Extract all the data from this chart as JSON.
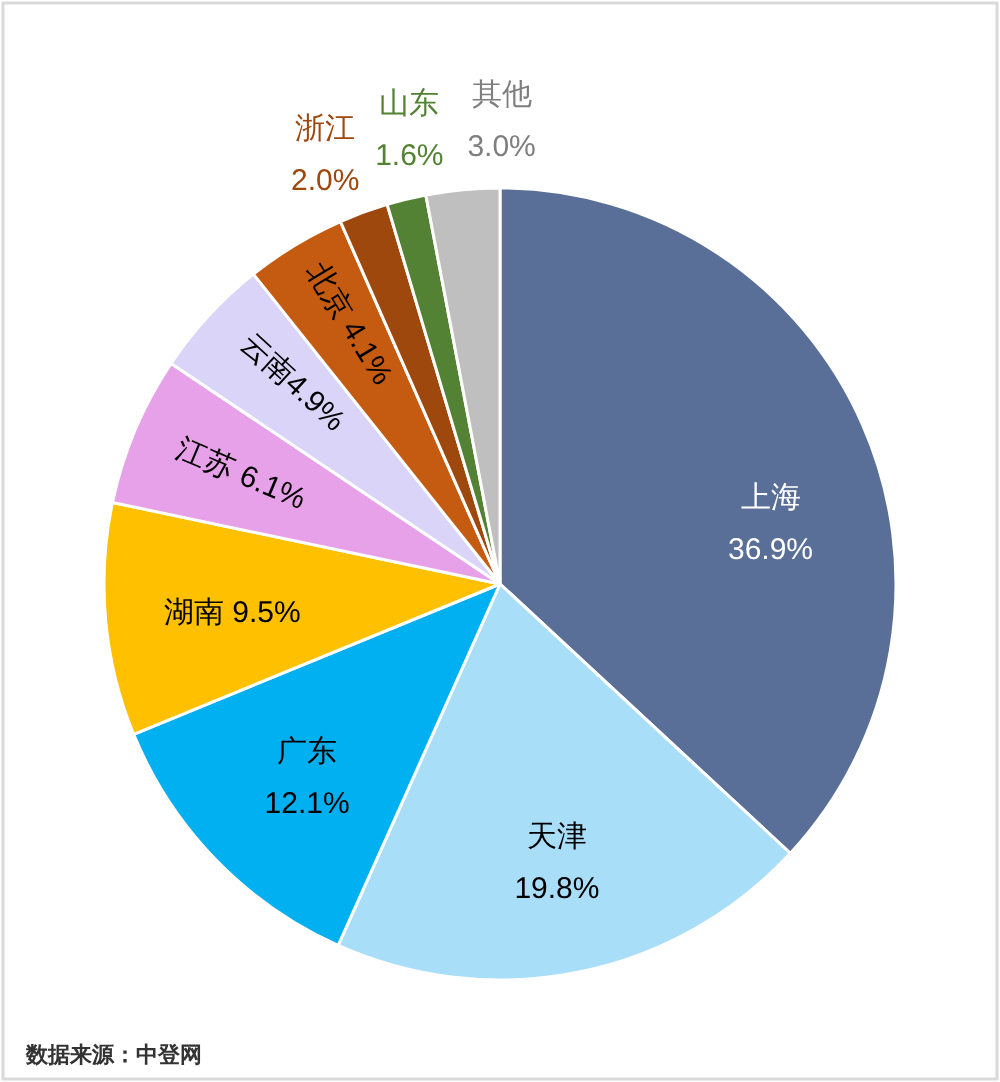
{
  "chart_data": {
    "type": "pie",
    "categories": [
      "上海",
      "天津",
      "广东",
      "湖南",
      "江苏",
      "云南",
      "北京",
      "浙江",
      "山东",
      "其他"
    ],
    "values": [
      36.9,
      19.8,
      12.1,
      9.5,
      6.1,
      4.9,
      4.1,
      2.0,
      1.6,
      3.0
    ],
    "colors": [
      "#5a6f97",
      "#a9def9",
      "#00b0f0",
      "#ffc000",
      "#e7a1e8",
      "#dad4f8",
      "#c55a11",
      "#9e480e",
      "#548235",
      "#bfbfbf"
    ],
    "value_labels": [
      "36.9%",
      "19.8%",
      "12.1%",
      "9.5%",
      "6.1%",
      "4.9%",
      "4.1%",
      "2.0%",
      "1.6%",
      "3.0%"
    ],
    "annotations": [
      "数据来源：中登网"
    ]
  }
}
